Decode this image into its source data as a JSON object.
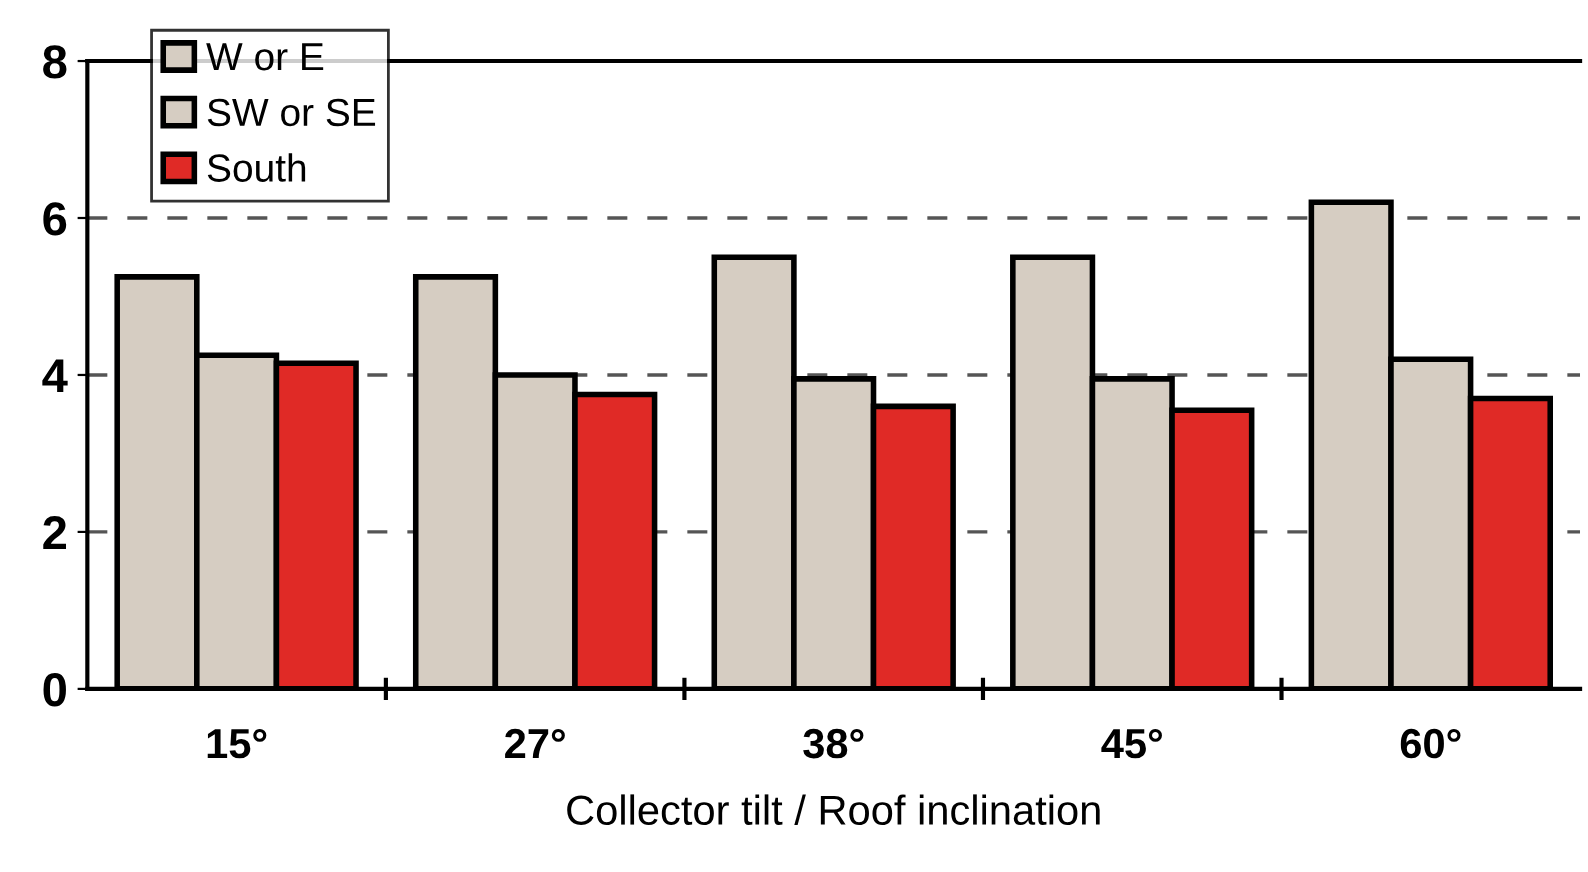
{
  "chart_data": {
    "type": "bar",
    "xlabel": "Collector tilt / Roof inclination",
    "categories": [
      "15°",
      "27°",
      "38°",
      "45°",
      "60°"
    ],
    "series": [
      {
        "name": "W or E",
        "color": "#d6cdc2",
        "values": [
          5.25,
          5.25,
          5.5,
          5.5,
          6.2
        ]
      },
      {
        "name": "SW or SE",
        "color": "#d6cdc2",
        "values": [
          4.25,
          4.0,
          3.95,
          3.95,
          4.2
        ]
      },
      {
        "name": "South",
        "color": "#e02a26",
        "values": [
          4.15,
          3.75,
          3.6,
          3.55,
          3.7
        ]
      }
    ],
    "ylim": [
      0,
      8
    ],
    "yticks": [
      0,
      2,
      4,
      6,
      8
    ],
    "grid": "y",
    "legend": "top left"
  }
}
